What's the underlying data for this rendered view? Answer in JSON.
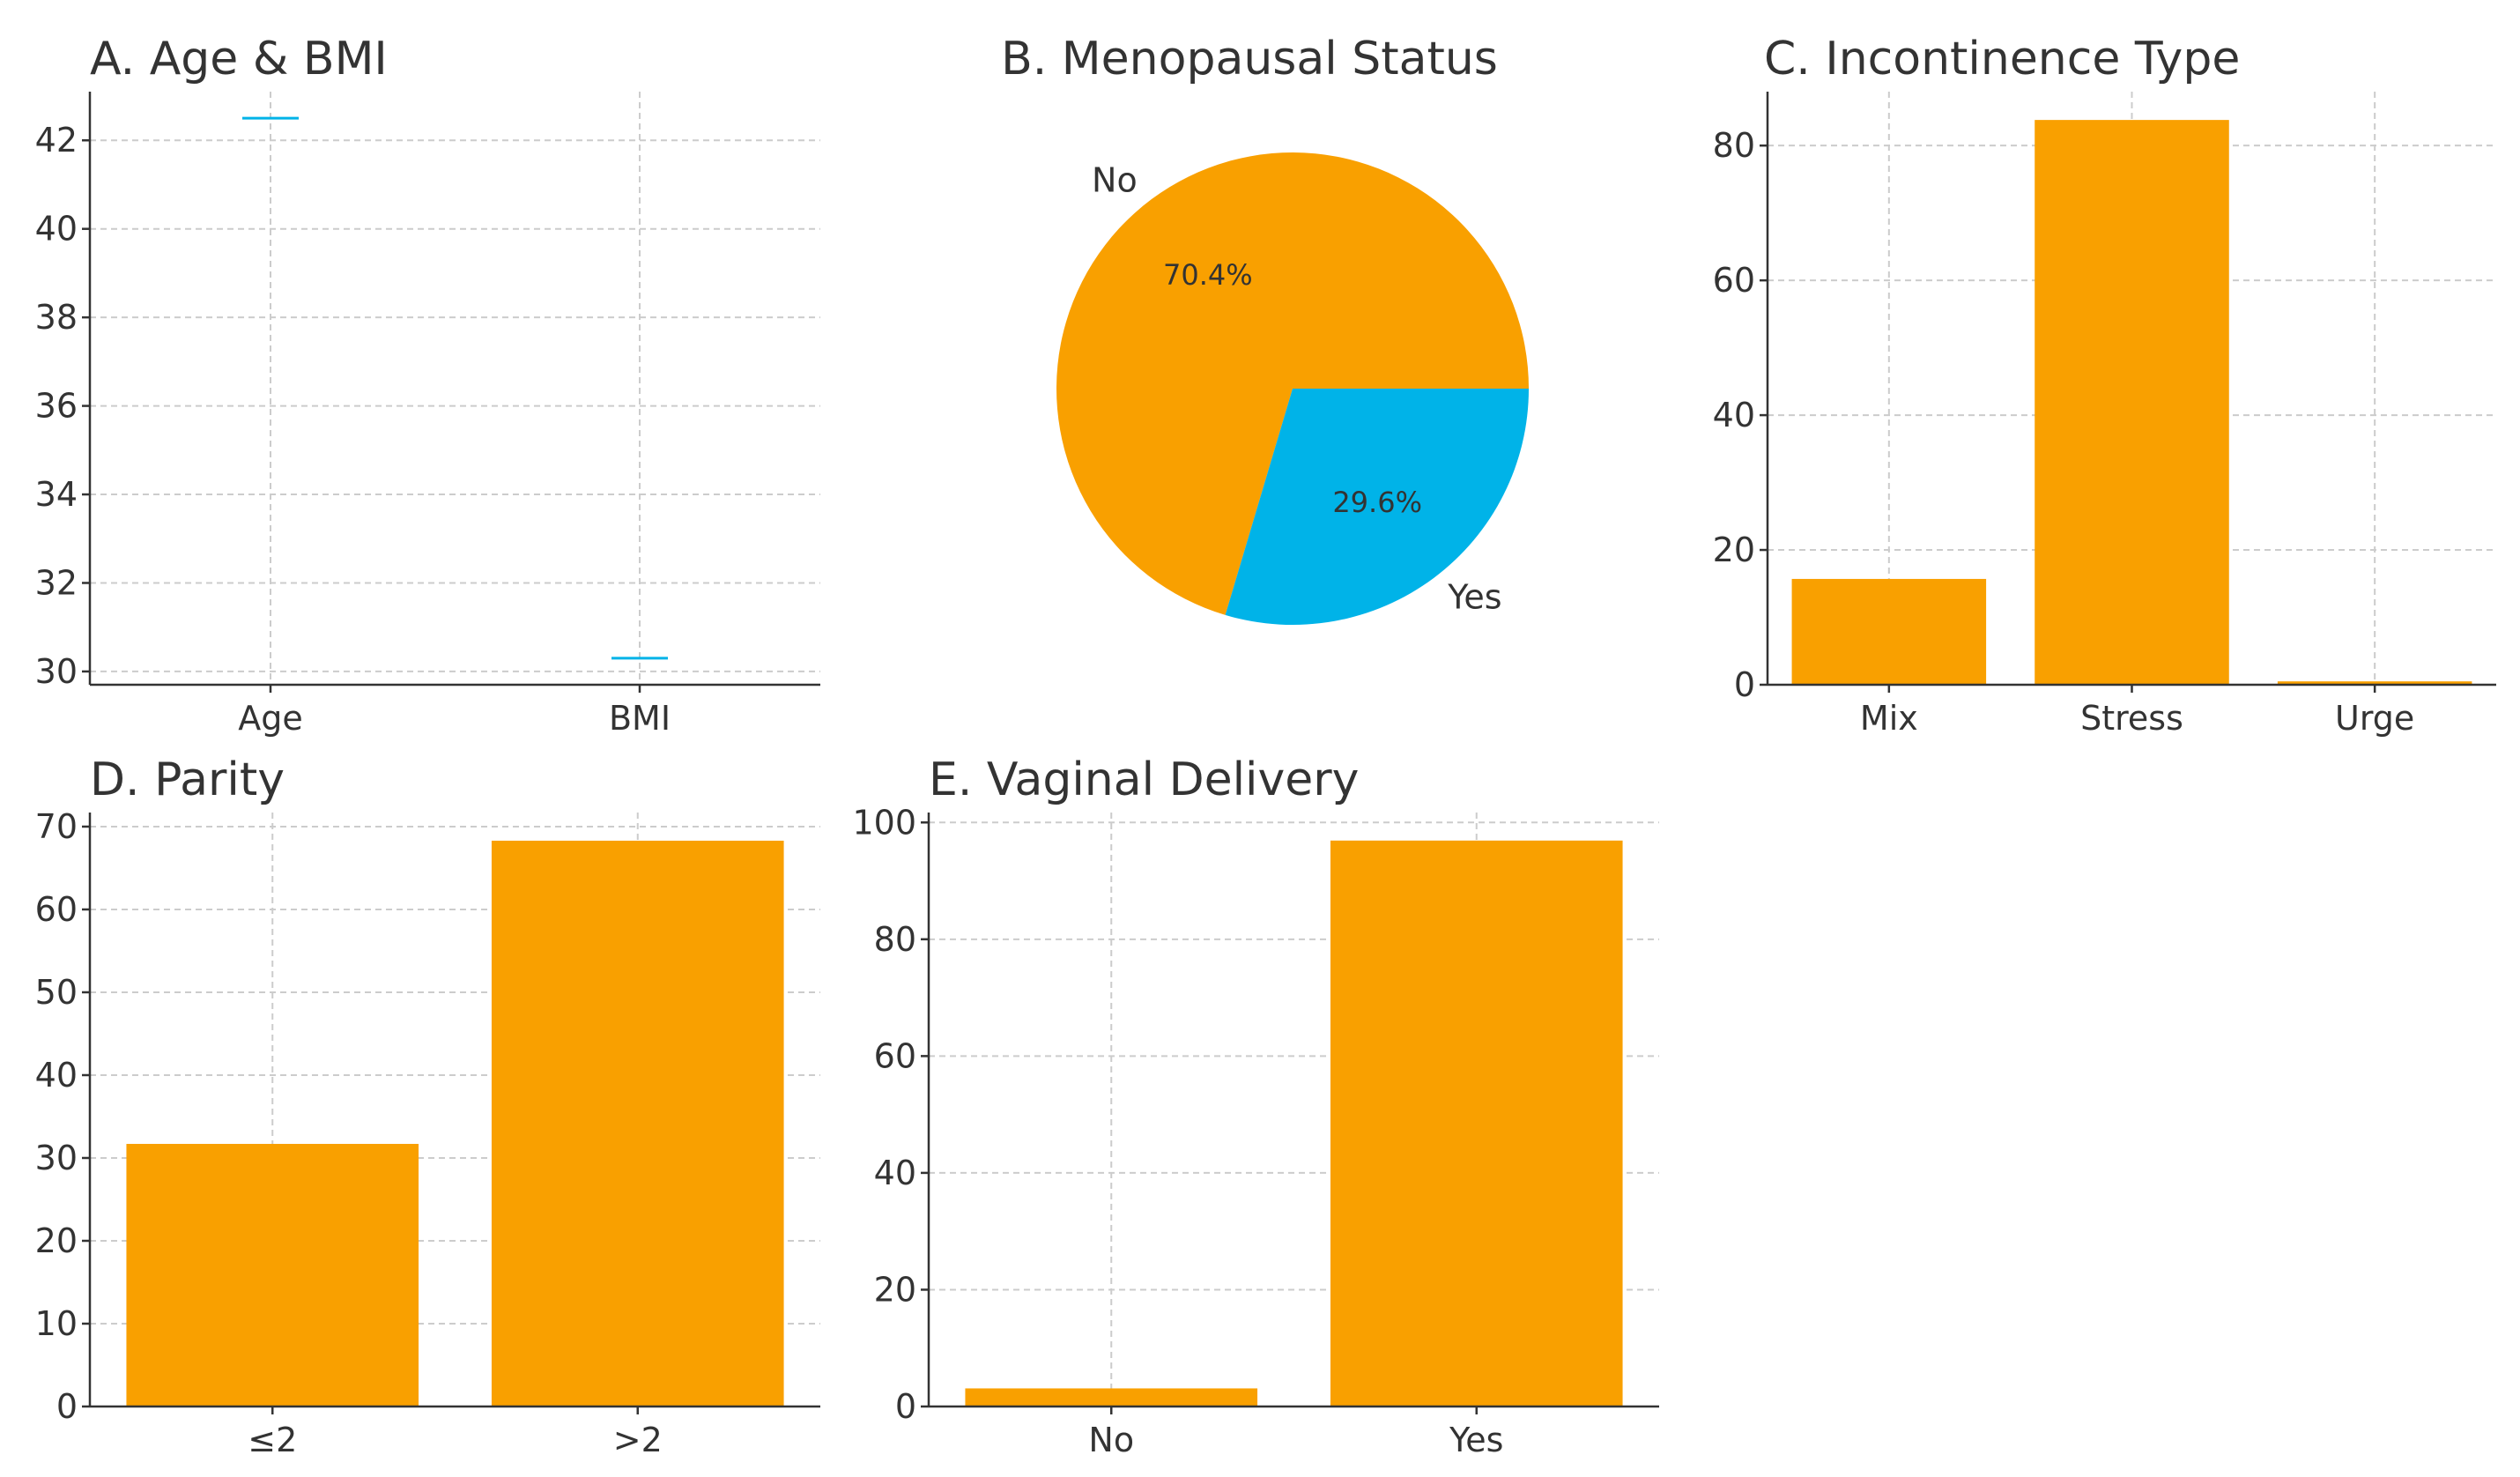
{
  "colors": {
    "orange": "#F9A000",
    "blue": "#00B3E8"
  },
  "chart_data": [
    {
      "id": "A",
      "type": "line",
      "title": "A. Age & BMI",
      "categories": [
        "Age",
        "BMI"
      ],
      "values": [
        42.5,
        30.3
      ],
      "ylim": [
        29.7,
        43.1
      ],
      "yticks": [
        30,
        32,
        34,
        36,
        38,
        40,
        42
      ],
      "grid": true,
      "color": "#00B3E8"
    },
    {
      "id": "B",
      "type": "pie",
      "title": "B. Menopausal Status",
      "labels": [
        "No",
        "Yes"
      ],
      "values": [
        70.4,
        29.6
      ],
      "autopct": [
        "70.4%",
        "29.6%"
      ],
      "colors": [
        "#F9A000",
        "#00B3E8"
      ]
    },
    {
      "id": "C",
      "type": "bar",
      "title": "C. Incontinence Type",
      "categories": [
        "Mix",
        "Stress",
        "Urge"
      ],
      "values": [
        15.7,
        83.8,
        0.5
      ],
      "ylim": [
        0,
        88
      ],
      "yticks": [
        0,
        20,
        40,
        60,
        80
      ],
      "grid": true,
      "color": "#F9A000"
    },
    {
      "id": "D",
      "type": "bar",
      "title": "D. Parity",
      "categories": [
        "≤2",
        ">2"
      ],
      "values": [
        31.7,
        68.3
      ],
      "ylim": [
        0,
        71.7
      ],
      "yticks": [
        0,
        10,
        20,
        30,
        40,
        50,
        60,
        70
      ],
      "grid": true,
      "color": "#F9A000"
    },
    {
      "id": "E",
      "type": "bar",
      "title": "E. Vaginal Delivery",
      "categories": [
        "No",
        "Yes"
      ],
      "values": [
        3.1,
        96.9
      ],
      "ylim": [
        0,
        101.7
      ],
      "yticks": [
        0,
        20,
        40,
        60,
        80,
        100
      ],
      "grid": true,
      "color": "#F9A000"
    }
  ]
}
